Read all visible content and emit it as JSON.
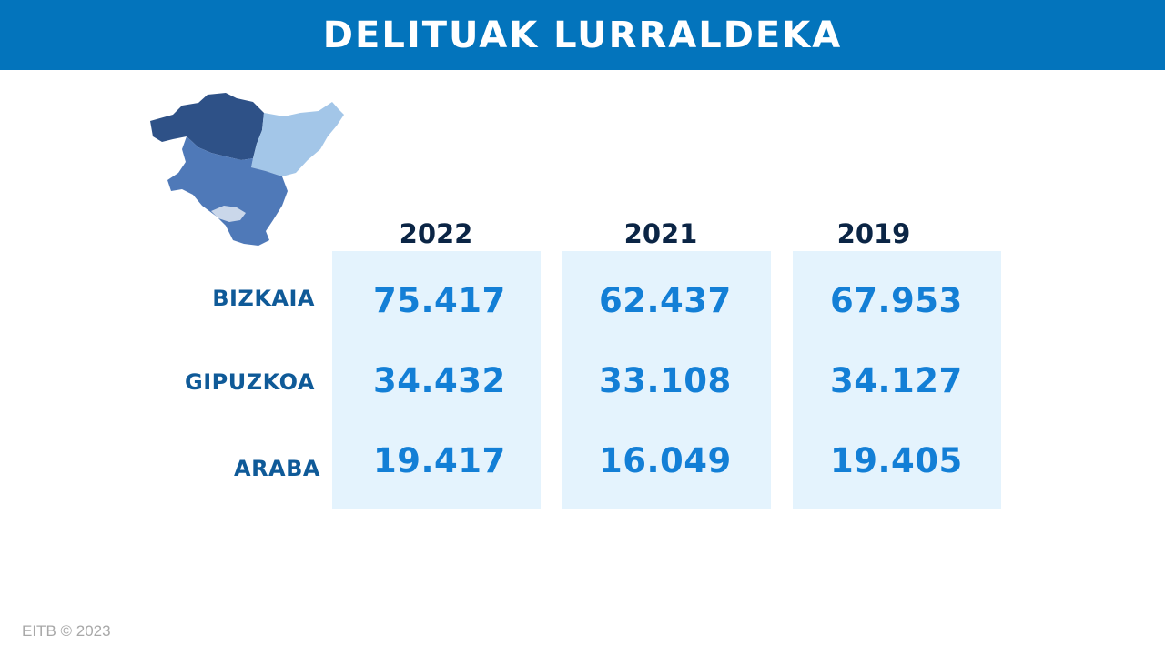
{
  "header": {
    "title": "DELITUAK LURRALDEKA"
  },
  "map": {
    "icon": "basque-country-map-icon",
    "colors": {
      "bizkaia": "#2e5187",
      "gipuzkoa": "#a3c6e8",
      "araba": "#4f79b8"
    }
  },
  "chart_data": {
    "type": "table",
    "title": "DELITUAK LURRALDEKA",
    "columns": [
      "2022",
      "2021",
      "2019"
    ],
    "rows": [
      {
        "label": "BIZKAIA",
        "values": [
          "75.417",
          "62.437",
          "67.953"
        ]
      },
      {
        "label": "GIPUZKOA",
        "values": [
          "34.432",
          "33.108",
          "34.127"
        ]
      },
      {
        "label": "ARABA",
        "values": [
          "19.417",
          "16.049",
          "19.405"
        ]
      }
    ]
  },
  "footer": {
    "credit": "EITB © 2023"
  }
}
